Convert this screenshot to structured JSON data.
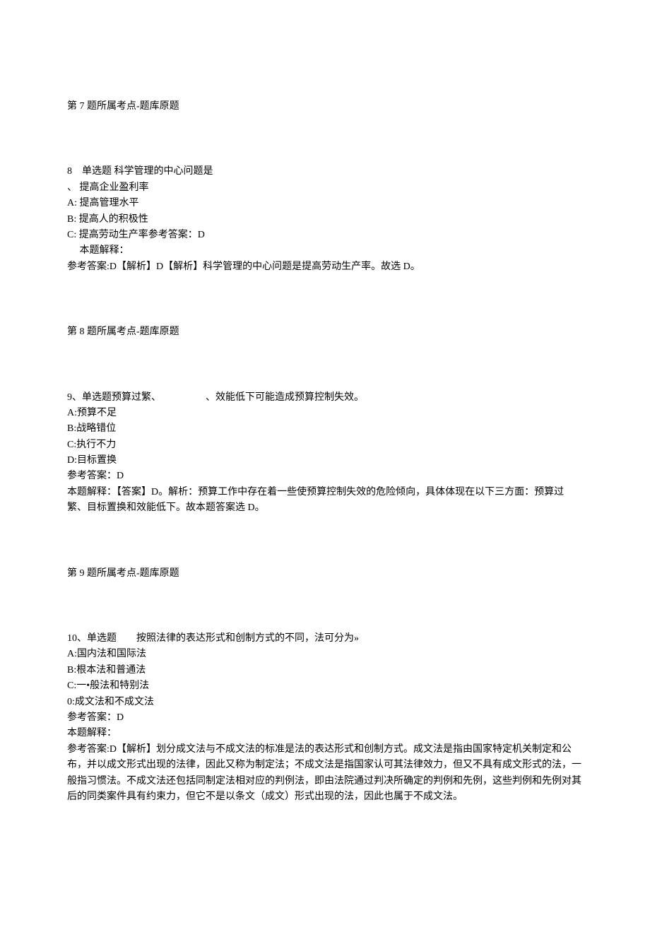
{
  "page": {
    "font_family": "SimSun",
    "font_size_pt": 10.5,
    "text_color": "#000000",
    "background_color": "#ffffff"
  },
  "q7_tag": "第 7 题所属考点-题库原题",
  "q8": {
    "number": "8",
    "type": "单选题",
    "stem": "科学管理的中心问题是",
    "options": {
      "A_prefix": "、",
      "A": "提高企业盈利率",
      "B_prefix": "A:",
      "B": "提高管理水平",
      "C_prefix": "B:",
      "C": "提高人的积极性",
      "D_prefix": "C:",
      "D": "提高劳动生产率参考答案：D"
    },
    "explain_label": "本题解释：",
    "explain": "参考答案:D【解析】D【解析】科学管理的中心问题是提高劳动生产率。故选 D。"
  },
  "q8_tag": "第 8 题所属考点-题库原题",
  "q9": {
    "number": "9、",
    "type": "单选题",
    "stem": "预算过繁、　　　　　、效能低下可能造成预算控制失效。",
    "options": {
      "A": "A:预算不足",
      "B": "B:战略错位",
      "C": "C:执行不力",
      "D": "D:目标置换"
    },
    "answer_label": "参考答案：",
    "answer": "D",
    "explain_label": "本题解释：",
    "explain": "【答案】D。解析：预算工作中存在着一些使预算控制失效的危险倾向，具体体现在以下三方面：预算过繁、目标置换和效能低下。故本题答案选 D。"
  },
  "q9_tag": "第 9 题所属考点-题库原题",
  "q10": {
    "number": "10、",
    "type": "单选题",
    "stem": "　按照法律的表达形式和创制方式的不同，法可分为»",
    "options": {
      "A": "A:国内法和国际法",
      "B": "B:根本法和普通法",
      "C": "C:一•般法和特别法",
      "D": "0:成文法和不成文法"
    },
    "answer_label": "参考答案：",
    "answer": "D",
    "explain_label": "本题解释：",
    "explain": "参考答案:D【解析】划分成文法与不成文法的标准是法的表达形式和创制方式。成文法是指由国家特定机关制定和公布，并以成文形式出现的法律，因此又称为制定法；不成文法是指国家认可其法律效力，但又不具有成文形式的法，一般指习惯法。不成文法还包括同制定法相对应的判例法，即由法院通过判决所确定的判例和先例，这些判例和先例对其后的同类案件具有约束力，但它不是以条文（成文）形式出现的法，因此也属于不成文法。"
  }
}
